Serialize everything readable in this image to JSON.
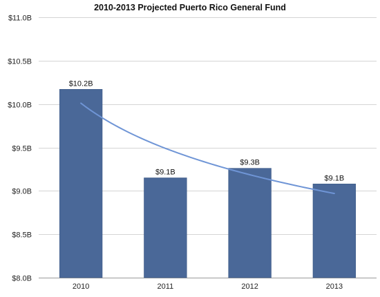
{
  "chart_data": {
    "type": "bar",
    "title": "2010-2013 Projected Puerto Rico General Fund",
    "categories": [
      "2010",
      "2011",
      "2012",
      "2013"
    ],
    "values": [
      10.17,
      9.15,
      9.26,
      9.08
    ],
    "data_labels": [
      "$10.2B",
      "$9.1B",
      "$9.3B",
      "$9.1B"
    ],
    "ylim": [
      8.0,
      11.0
    ],
    "yticks": [
      8.0,
      8.5,
      9.0,
      9.5,
      10.0,
      10.5,
      11.0
    ],
    "ytick_labels": [
      "$8.0B",
      "$8.5B",
      "$9.0B",
      "$9.5B",
      "$10.0B",
      "$10.5B",
      "$11.0B"
    ],
    "grid": true,
    "trendline": {
      "type": "logarithmic",
      "values": [
        10.01,
        9.48,
        9.17,
        8.97
      ]
    },
    "colors": {
      "bar": "#4a6898",
      "bar_edge": "#3d5a86",
      "trendline": "#6f95d6",
      "grid": "#d4d4d4"
    }
  }
}
